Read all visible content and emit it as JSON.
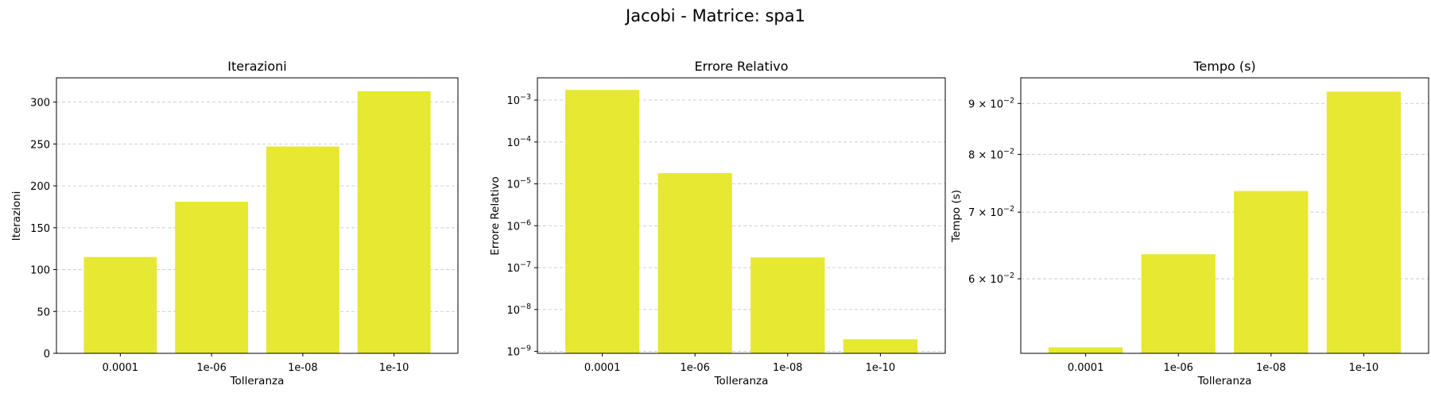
{
  "figure": {
    "title": "Jacobi - Matrice: spa1"
  },
  "chart_data": [
    {
      "type": "bar",
      "title": "Iterazioni",
      "xlabel": "Tolleranza",
      "ylabel": "Iterazioni",
      "categories": [
        "0.0001",
        "1e-06",
        "1e-08",
        "1e-10"
      ],
      "values": [
        115,
        181,
        247,
        313
      ],
      "ylim": [
        0,
        329
      ],
      "yscale": "linear",
      "yticks": [
        0,
        50,
        100,
        150,
        200,
        250,
        300
      ],
      "grid": "y dashed",
      "color": "#e6e832"
    },
    {
      "type": "bar",
      "title": "Errore Relativo",
      "xlabel": "Tolleranza",
      "ylabel": "Errore Relativo",
      "categories": [
        "0.0001",
        "1e-06",
        "1e-08",
        "1e-10"
      ],
      "values": [
        0.00175,
        1.8e-05,
        1.75e-07,
        1.95e-09
      ],
      "ylim": [
        9e-10,
        0.0034
      ],
      "yscale": "log",
      "yticks": [
        1e-09,
        1e-08,
        1e-07,
        1e-06,
        1e-05,
        0.0001,
        0.001
      ],
      "ytick_labels": [
        [
          "10",
          "−9"
        ],
        [
          "10",
          "−8"
        ],
        [
          "10",
          "−7"
        ],
        [
          "10",
          "−6"
        ],
        [
          "10",
          "−5"
        ],
        [
          "10",
          "−4"
        ],
        [
          "10",
          "−3"
        ]
      ],
      "grid": "y dashed",
      "color": "#e6e832"
    },
    {
      "type": "bar",
      "title": "Tempo (s)",
      "xlabel": "Tolleranza",
      "ylabel": "Tempo (s)",
      "categories": [
        "0.0001",
        "1e-06",
        "1e-08",
        "1e-10"
      ],
      "values": [
        0.0512,
        0.0635,
        0.0735,
        0.0925
      ],
      "ylim": [
        0.0505,
        0.0955
      ],
      "yscale": "log",
      "yticks": [
        0.06,
        0.07,
        0.08,
        0.09
      ],
      "ytick_labels": [
        [
          "6 × 10",
          "−2"
        ],
        [
          "7 × 10",
          "−2"
        ],
        [
          "8 × 10",
          "−2"
        ],
        [
          "9 × 10",
          "−2"
        ]
      ],
      "grid": "y dashed",
      "color": "#e6e832"
    }
  ]
}
